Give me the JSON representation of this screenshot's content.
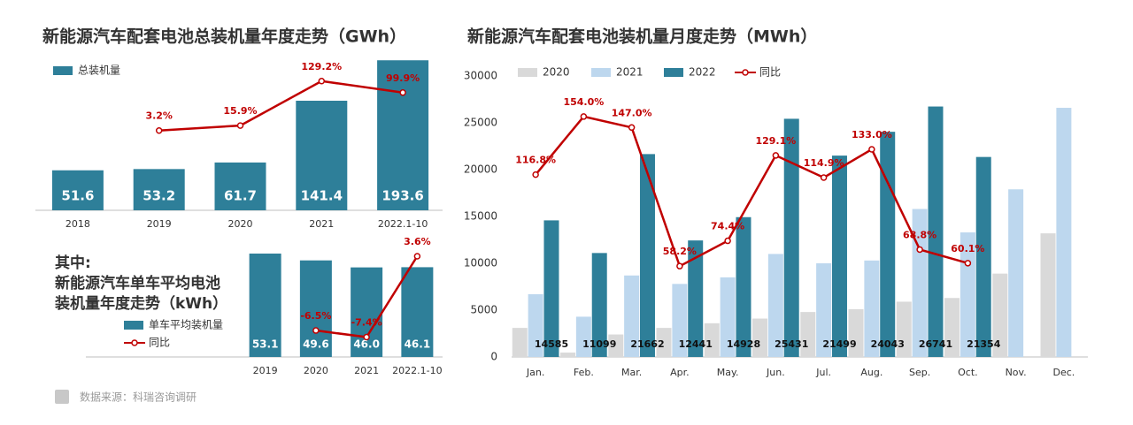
{
  "chart_data": [
    {
      "type": "bar",
      "title": "新能源汽车配套电池总装机量年度走势（GWh）",
      "categories": [
        "2018",
        "2019",
        "2020",
        "2021",
        "2022.1-10"
      ],
      "ylim": [
        0,
        195
      ],
      "y2lim": [
        -200,
        185
      ],
      "series": [
        {
          "name": "总装机量",
          "color": "#2e7f99",
          "labels": true,
          "values": [
            51.6,
            53.2,
            61.7,
            141.4,
            193.6
          ]
        },
        {
          "type": "line",
          "axis": "y2",
          "color": "#c00000",
          "labels": true,
          "values": [
            null,
            3.2,
            15.9,
            129.2,
            99.9
          ],
          "value_labels": [
            null,
            "3.2%",
            "15.9%",
            "129.2%",
            "99.9%"
          ]
        }
      ]
    },
    {
      "type": "bar",
      "title": [
        "其中:",
        "新能源汽车单车平均电池",
        "装机量年度走势（kWh）"
      ],
      "categories": [
        "2019",
        "2020",
        "2021",
        "2022.1-10"
      ],
      "ylim": [
        0,
        54
      ],
      "y2lim": [
        -10.1,
        4.2
      ],
      "series": [
        {
          "name": "单车平均装机量",
          "color": "#2e7f99",
          "labels": true,
          "values": [
            53.1,
            49.6,
            46.0,
            46.1
          ],
          "value_labels": [
            "53.1",
            "49.6",
            "46.0",
            "46.1"
          ]
        },
        {
          "name": "同比",
          "type": "line",
          "axis": "y2",
          "color": "#c00000",
          "labels": true,
          "values": [
            null,
            -6.5,
            -7.4,
            3.6
          ],
          "value_labels": [
            null,
            "-6.5%",
            "-7.4%",
            "3.6%"
          ]
        }
      ]
    },
    {
      "type": "bar",
      "title": "新能源汽车配套电池装机量月度走势（MWh）",
      "categories": [
        "Jan.",
        "Feb.",
        "Mar.",
        "Apr.",
        "May.",
        "Jun.",
        "Jul.",
        "Aug.",
        "Sep.",
        "Oct.",
        "Nov.",
        "Dec."
      ],
      "ylim": [
        0,
        30000
      ],
      "yticks": [
        0,
        5000,
        10000,
        15000,
        20000,
        25000,
        30000
      ],
      "y2lim": [
        0,
        180
      ],
      "series": [
        {
          "name": "2020",
          "color": "#d9d9d9",
          "values": [
            3100,
            470,
            2400,
            3100,
            3600,
            4100,
            4800,
            5100,
            5900,
            6300,
            8900,
            13200
          ]
        },
        {
          "name": "2021",
          "color": "#bdd7ee",
          "values": [
            6700,
            4300,
            8700,
            7800,
            8500,
            11000,
            10000,
            10300,
            15800,
            13300,
            17900,
            26600
          ]
        },
        {
          "name": "2022",
          "color": "#2e7f99",
          "labels": true,
          "values": [
            14585,
            11099,
            21662,
            12441,
            14928,
            25431,
            21499,
            24043,
            26741,
            21354,
            null,
            null
          ]
        },
        {
          "name": "同比",
          "type": "line",
          "axis": "y2",
          "color": "#c00000",
          "labels": true,
          "values": [
            116.8,
            154.0,
            147.0,
            58.2,
            74.4,
            129.1,
            114.9,
            133.0,
            68.8,
            60.1,
            null,
            null
          ],
          "value_labels": [
            "116.8%",
            "154.0%",
            "147.0%",
            "58.2%",
            "74.4%",
            "129.1%",
            "114.9%",
            "133.0%",
            "68.8%",
            "60.1%",
            null,
            null
          ]
        }
      ]
    }
  ],
  "source": "数据来源：科瑞咨询调研"
}
